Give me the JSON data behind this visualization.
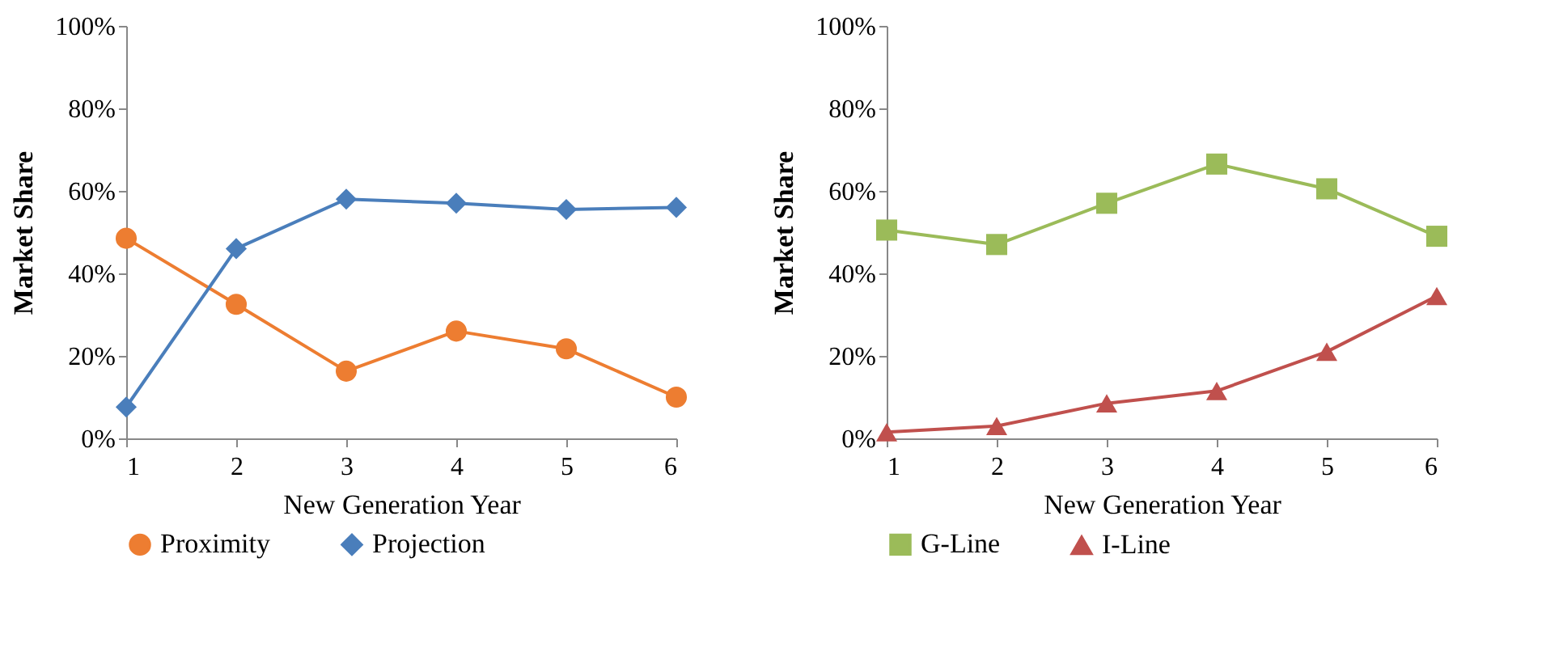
{
  "chart_data": [
    {
      "type": "line",
      "xlabel": "New Generation Year",
      "ylabel": "Market Share",
      "x": [
        1,
        2,
        3,
        4,
        5,
        6
      ],
      "xlim": [
        1,
        6
      ],
      "xticks": [
        1,
        2,
        3,
        4,
        5,
        6
      ],
      "ylim": [
        0,
        100
      ],
      "yticks": [
        {
          "value": 0,
          "label": "0%"
        },
        {
          "value": 20,
          "label": "20%"
        },
        {
          "value": 40,
          "label": "40%"
        },
        {
          "value": 60,
          "label": "60%"
        },
        {
          "value": 80,
          "label": "80%"
        },
        {
          "value": 100,
          "label": "100%"
        }
      ],
      "grid": false,
      "legend": "bottom",
      "series": [
        {
          "name": "Proximity",
          "color": "#ed7d31",
          "marker": "circle",
          "values": [
            48.5,
            32.5,
            16.3,
            26,
            21.7,
            10
          ]
        },
        {
          "name": "Projection",
          "color": "#4a7ebb",
          "marker": "diamond",
          "values": [
            7.6,
            46,
            58,
            57,
            55.5,
            56
          ]
        }
      ]
    },
    {
      "type": "line",
      "xlabel": "New Generation Year",
      "ylabel": "Market Share",
      "x": [
        1,
        2,
        3,
        4,
        5,
        6
      ],
      "xlim": [
        1,
        6
      ],
      "xticks": [
        1,
        2,
        3,
        4,
        5,
        6
      ],
      "ylim": [
        0,
        100
      ],
      "yticks": [
        {
          "value": 0,
          "label": "0%"
        },
        {
          "value": 20,
          "label": "20%"
        },
        {
          "value": 40,
          "label": "40%"
        },
        {
          "value": 60,
          "label": "60%"
        },
        {
          "value": 80,
          "label": "80%"
        },
        {
          "value": 100,
          "label": "100%"
        }
      ],
      "grid": false,
      "legend": "bottom",
      "series": [
        {
          "name": "G-Line",
          "color": "#9bbb59",
          "marker": "square",
          "values": [
            50.5,
            47,
            57,
            66.5,
            60.5,
            49
          ]
        },
        {
          "name": "I-Line",
          "color": "#c0504d",
          "marker": "triangle",
          "values": [
            1.5,
            3,
            8.5,
            11.5,
            21,
            34.5
          ]
        }
      ]
    }
  ]
}
